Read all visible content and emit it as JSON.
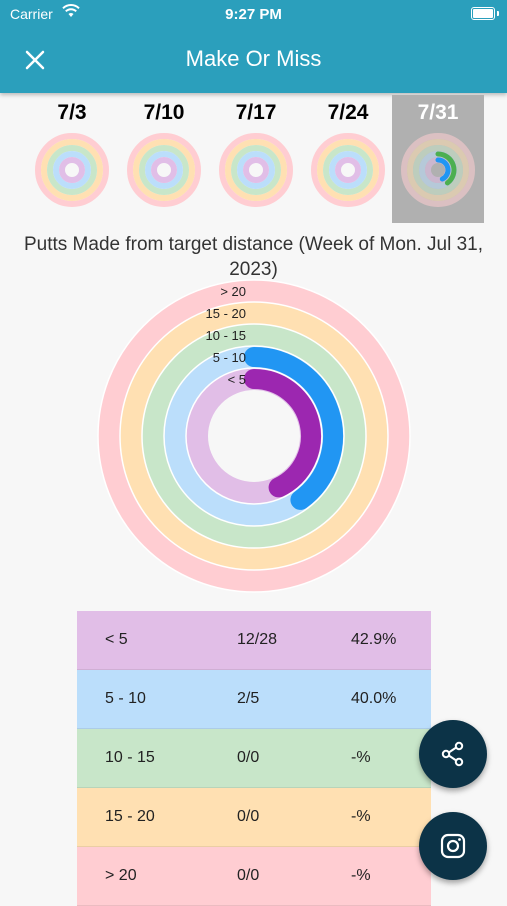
{
  "status_bar": {
    "carrier": "Carrier",
    "time": "9:27 PM"
  },
  "app_bar": {
    "title": "Make Or Miss",
    "close_icon": "close-icon"
  },
  "weeks": [
    {
      "label": "7/3",
      "selected": false
    },
    {
      "label": "7/10",
      "selected": false
    },
    {
      "label": "7/17",
      "selected": false
    },
    {
      "label": "7/24",
      "selected": false
    },
    {
      "label": "7/31",
      "selected": true
    }
  ],
  "chart_title": "Putts Made from target distance (Week of Mon. Jul 31, 2023)",
  "chart_data": {
    "type": "radial-bar",
    "rings": [
      {
        "label": "< 5",
        "made": 12,
        "attempted": 28,
        "percent": 42.9,
        "color": "#9c27b0",
        "track": "#e1bee7"
      },
      {
        "label": "5 - 10",
        "made": 2,
        "attempted": 5,
        "percent": 40.0,
        "color": "#2196f3",
        "track": "#bbdefb"
      },
      {
        "label": "10 - 15",
        "made": 0,
        "attempted": 0,
        "percent": null,
        "color": "#4caf50",
        "track": "#c8e6c9"
      },
      {
        "label": "15 - 20",
        "made": 0,
        "attempted": 0,
        "percent": null,
        "color": "#ff9800",
        "track": "#ffe0b2"
      },
      {
        "label": "> 20",
        "made": 0,
        "attempted": 0,
        "percent": null,
        "color": "#f44336",
        "track": "#ffcdd2"
      }
    ]
  },
  "table": {
    "rows": [
      {
        "range": "< 5",
        "made": "12/28",
        "pct": "42.9%",
        "bg": "#e1bee7"
      },
      {
        "range": "5 - 10",
        "made": "2/5",
        "pct": "40.0%",
        "bg": "#bbdefb"
      },
      {
        "range": "10 - 15",
        "made": "0/0",
        "pct": "-%",
        "bg": "#c8e6c9"
      },
      {
        "range": "15 - 20",
        "made": "0/0",
        "pct": "-%",
        "bg": "#ffe0b2"
      },
      {
        "range": "> 20",
        "made": "0/0",
        "pct": "-%",
        "bg": "#ffcdd2"
      }
    ]
  },
  "fabs": {
    "share_icon": "share-icon",
    "instagram_icon": "instagram-icon"
  }
}
